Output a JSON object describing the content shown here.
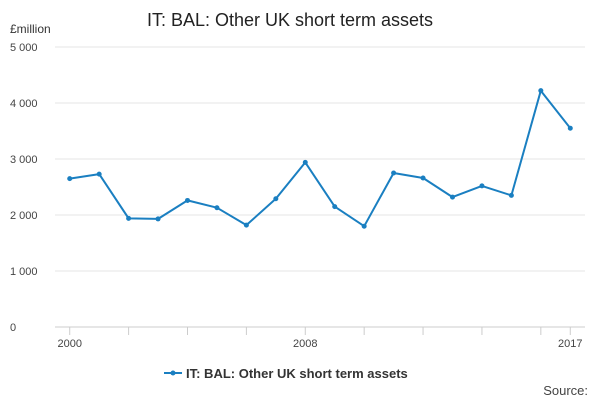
{
  "chart_data": {
    "type": "line",
    "title": "IT: BAL: Other UK short term assets",
    "ylabel": "£million",
    "xlabel": "",
    "x": [
      2000,
      2001,
      2002,
      2003,
      2004,
      2005,
      2006,
      2007,
      2008,
      2009,
      2010,
      2011,
      2012,
      2013,
      2014,
      2015,
      2016,
      2017
    ],
    "x_ticks": [
      2000,
      2008,
      2017
    ],
    "x_tick_labels": [
      "2000",
      "2008",
      "2017"
    ],
    "xlim": [
      1999.5,
      2017.5
    ],
    "ylim": [
      0,
      5000
    ],
    "y_ticks": [
      0,
      1000,
      2000,
      3000,
      4000,
      5000
    ],
    "y_tick_labels": [
      "0",
      "1 000",
      "2 000",
      "3 000",
      "4 000",
      "5 000"
    ],
    "grid": "horizontal",
    "legend_position": "bottom-center",
    "series": [
      {
        "name": "IT: BAL: Other UK short term assets",
        "color": "#1a7fc1",
        "values": [
          2650,
          2730,
          1940,
          1930,
          2260,
          2130,
          1820,
          2290,
          2940,
          2150,
          1800,
          2750,
          2660,
          2320,
          2520,
          2350,
          4220,
          3550
        ]
      }
    ],
    "source_label": "Source:"
  },
  "colors": {
    "series": "#1a7fc1",
    "grid": "#e6e6e6",
    "axis": "#cccccc",
    "text": "#222222"
  }
}
